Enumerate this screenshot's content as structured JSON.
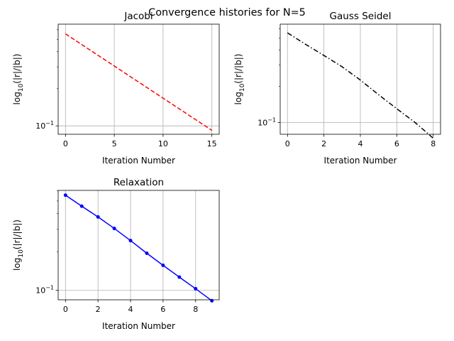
{
  "figure": {
    "suptitle": "Convergence histories for N=5"
  },
  "chart_data": [
    {
      "type": "line",
      "title": "Jacobi",
      "xlabel": "Iteration Number",
      "ylabel_parts": [
        "log",
        "10",
        "(|r|/|b|)"
      ],
      "yscale": "log",
      "xlim": [
        -0.75,
        15.75
      ],
      "ylim": [
        0.0855,
        0.665
      ],
      "xticks": [
        0,
        5,
        10,
        15
      ],
      "xtick_labels": [
        "0",
        "5",
        "10",
        "15"
      ],
      "yticks": [
        0.1
      ],
      "ytick_label_parts": [
        [
          "10",
          "−1"
        ]
      ],
      "yminor_ticks": [
        0.2,
        0.3,
        0.4,
        0.5,
        0.6
      ],
      "grid": true,
      "series": [
        {
          "color": "#ff0000",
          "linestyle": "dashed",
          "marker": "none",
          "x": [
            0,
            15
          ],
          "y": [
            0.555,
            0.092
          ]
        }
      ]
    },
    {
      "type": "line",
      "title": "Gauss Seidel",
      "xlabel": "Iteration Number",
      "ylabel_parts": [
        "log",
        "10",
        "(|r|/|b|)"
      ],
      "yscale": "log",
      "xlim": [
        -0.4,
        8.4
      ],
      "ylim": [
        0.0798,
        0.655
      ],
      "xticks": [
        0,
        2,
        4,
        6,
        8
      ],
      "xtick_labels": [
        "0",
        "2",
        "4",
        "6",
        "8"
      ],
      "yticks": [
        0.1
      ],
      "ytick_label_parts": [
        [
          "10",
          "−1"
        ]
      ],
      "yminor_ticks": [
        0.2,
        0.3,
        0.4,
        0.5,
        0.6
      ],
      "grid": true,
      "series": [
        {
          "color": "#000000",
          "linestyle": "dashdot",
          "marker": "none",
          "x": [
            0,
            1,
            2,
            3,
            4,
            5,
            6,
            7,
            8
          ],
          "y": [
            0.555,
            0.445,
            0.36,
            0.29,
            0.225,
            0.17,
            0.13,
            0.1,
            0.074
          ]
        }
      ]
    },
    {
      "type": "line",
      "title": "Relaxation",
      "xlabel": "Iteration Number",
      "ylabel_parts": [
        "log",
        "10",
        "(|r|/|b|)"
      ],
      "yscale": "log",
      "xlim": [
        -0.45,
        9.45
      ],
      "ylim": [
        0.0844,
        0.605
      ],
      "xticks": [
        0,
        2,
        4,
        6,
        8
      ],
      "xtick_labels": [
        "0",
        "2",
        "4",
        "6",
        "8"
      ],
      "yticks": [
        0.1
      ],
      "ytick_label_parts": [
        [
          "10",
          "−1"
        ]
      ],
      "yminor_ticks": [
        0.2,
        0.3,
        0.4,
        0.5,
        0.6
      ],
      "grid": true,
      "series": [
        {
          "color": "#0000ff",
          "linestyle": "solid",
          "marker": "dot",
          "x": [
            0,
            1,
            2,
            3,
            4,
            5,
            6,
            7,
            8,
            9
          ],
          "y": [
            0.555,
            0.455,
            0.375,
            0.305,
            0.245,
            0.195,
            0.157,
            0.127,
            0.103,
            0.083
          ]
        }
      ]
    }
  ]
}
